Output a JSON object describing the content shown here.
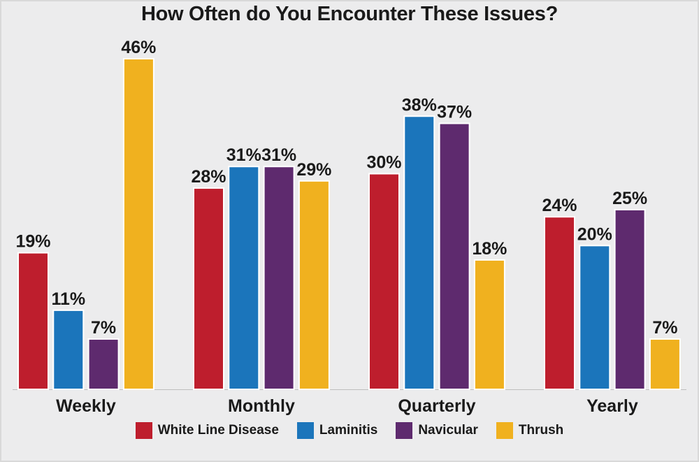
{
  "chart_data": {
    "type": "bar",
    "title": "How Often do You Encounter These Issues?",
    "categories": [
      "Weekly",
      "Monthly",
      "Quarterly",
      "Yearly"
    ],
    "series": [
      {
        "name": "White Line Disease",
        "color": "#be1e2d",
        "values": [
          19,
          28,
          30,
          24
        ],
        "labels": [
          "19%",
          "28%",
          "30%",
          "24%"
        ]
      },
      {
        "name": "Laminitis",
        "color": "#1b75bb",
        "values": [
          11,
          31,
          38,
          20
        ],
        "labels": [
          "11%",
          "31%",
          "38%",
          "20%"
        ]
      },
      {
        "name": "Navicular",
        "color": "#5e2a6e",
        "values": [
          7,
          31,
          37,
          25
        ],
        "labels": [
          "7%",
          "31%",
          "37%",
          "25%"
        ]
      },
      {
        "name": "Thrush",
        "color": "#f0b11f",
        "values": [
          46,
          29,
          18,
          7
        ],
        "labels": [
          "46%",
          "29%",
          "18%",
          "7%"
        ]
      }
    ],
    "ylim": [
      0,
      46
    ],
    "legend_position": "bottom",
    "grid": false
  }
}
